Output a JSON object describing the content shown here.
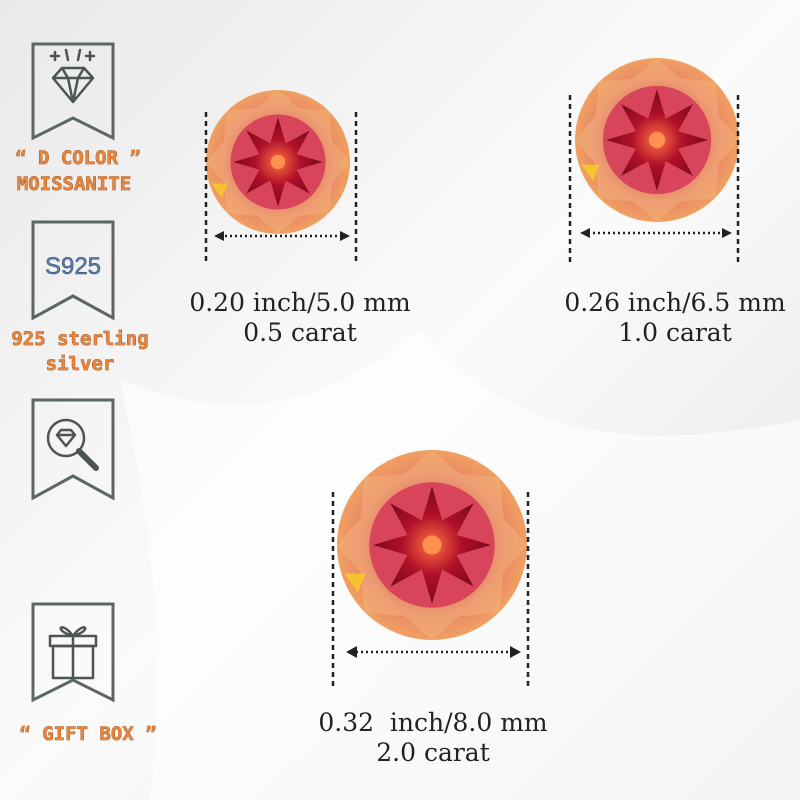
{
  "features": {
    "d_color": [
      "“ D COLOR ”",
      "MOISSANITE"
    ],
    "s925_icon": "S925",
    "sterling": [
      "925 sterling",
      "silver"
    ],
    "gift_box": "“ GIFT BOX ”"
  },
  "sizes": [
    {
      "dimension": "0.20 inch/5.0 mm",
      "carat": "0.5 carat"
    },
    {
      "dimension": "0.26 inch/6.5 mm",
      "carat": "1.0 carat"
    },
    {
      "dimension": "0.32  inch/8.0 mm",
      "carat": "2.0 carat"
    }
  ]
}
